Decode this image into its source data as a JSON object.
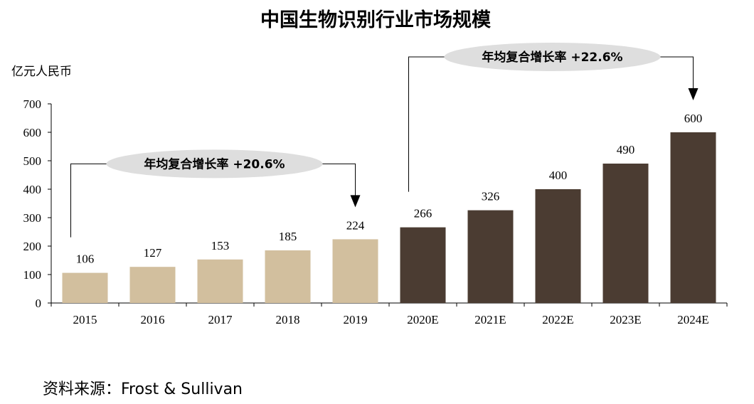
{
  "chart_data": {
    "type": "bar",
    "title": "中国生物识别行业市场规模",
    "ylabel": "亿元人民币",
    "xlabel": "",
    "ylim": [
      0,
      700
    ],
    "yticks": [
      "0",
      "100",
      "200",
      "300",
      "400",
      "500",
      "600",
      "700"
    ],
    "grid": false,
    "categories": [
      "2015",
      "2016",
      "2017",
      "2018",
      "2019",
      "2020E",
      "2021E",
      "2022E",
      "2023E",
      "2024E"
    ],
    "values": [
      106,
      127,
      153,
      185,
      224,
      266,
      326,
      400,
      490,
      600
    ],
    "data_labels": [
      "106",
      "127",
      "153",
      "185",
      "224",
      "266",
      "326",
      "400",
      "490",
      "600"
    ],
    "annotations": [
      {
        "text": "年均复合增长率 +20.6%",
        "from": "2015",
        "to": "2019"
      },
      {
        "text": "年均复合增长率 +22.6%",
        "from": "2020E",
        "to": "2024E"
      }
    ]
  },
  "colors": {
    "historical_bar": "#d2bf9e",
    "forecast_bar": "#4b3c32",
    "annotation_ellipse": "#dedede"
  },
  "source": "资料来源：Frost & Sullivan"
}
